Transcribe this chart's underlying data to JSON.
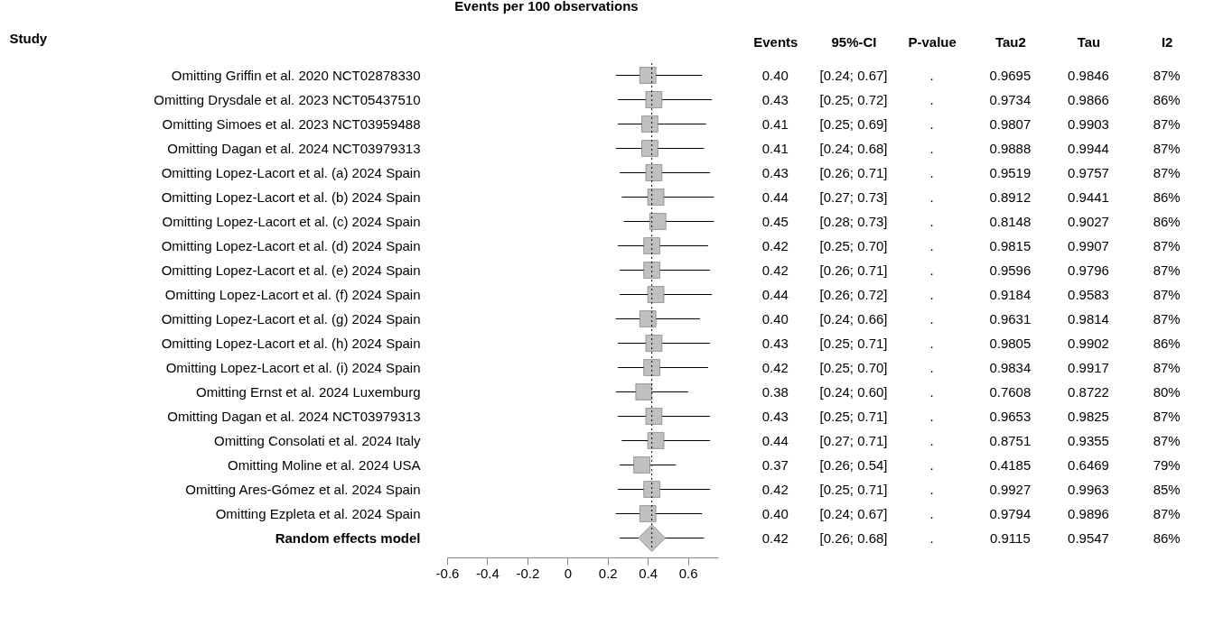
{
  "chart_data": [
    {
      "type": "scatter",
      "orientation": "horizontal",
      "xlabel": "Events per 100 observations",
      "ylabel": "Study",
      "categories": [
        "Omitting Griffin et al. 2020 NCT02878330",
        "Omitting Drysdale et al. 2023 NCT05437510",
        "Omitting Simoes et al. 2023 NCT03959488",
        "Omitting Dagan et al. 2024 NCT03979313",
        "Omitting Lopez-Lacort et al. (a) 2024 Spain",
        "Omitting Lopez-Lacort et al. (b) 2024 Spain",
        "Omitting Lopez-Lacort et al. (c) 2024 Spain",
        "Omitting Lopez-Lacort et al. (d) 2024 Spain",
        "Omitting Lopez-Lacort et al. (e) 2024 Spain",
        "Omitting Lopez-Lacort et al. (f) 2024 Spain",
        "Omitting Lopez-Lacort et al. (g) 2024 Spain",
        "Omitting Lopez-Lacort et al. (h) 2024 Spain",
        "Omitting Lopez-Lacort et al. (i) 2024 Spain",
        "Omitting Ernst et al. 2024 Luxemburg",
        "Omitting Dagan et al. 2024 NCT03979313",
        "Omitting Consolati et al. 2024 Italy",
        "Omitting Moline et al. 2024 USA",
        "Omitting Ares-Gómez et al. 2024 Spain",
        "Omitting Ezpleta et al. 2024 Spain",
        "Random effects model"
      ],
      "series": [
        {
          "color": "#c0c0c0",
          "marker": "square",
          "values": [
            0.4,
            0.43,
            0.41,
            0.41,
            0.43,
            0.44,
            0.45,
            0.42,
            0.42,
            0.44,
            0.4,
            0.43,
            0.42,
            0.38,
            0.43,
            0.44,
            0.37,
            0.42,
            0.4,
            null
          ],
          "errors": [
            [
              0.24,
              0.67
            ],
            [
              0.25,
              0.72
            ],
            [
              0.25,
              0.69
            ],
            [
              0.24,
              0.68
            ],
            [
              0.26,
              0.71
            ],
            [
              0.27,
              0.73
            ],
            [
              0.28,
              0.73
            ],
            [
              0.25,
              0.7
            ],
            [
              0.26,
              0.71
            ],
            [
              0.26,
              0.72
            ],
            [
              0.24,
              0.66
            ],
            [
              0.25,
              0.71
            ],
            [
              0.25,
              0.7
            ],
            [
              0.24,
              0.6
            ],
            [
              0.25,
              0.71
            ],
            [
              0.27,
              0.71
            ],
            [
              0.26,
              0.54
            ],
            [
              0.25,
              0.71
            ],
            [
              0.24,
              0.67
            ],
            null
          ]
        },
        {
          "color": "#c0c0c0",
          "marker": "diamond",
          "values": [
            null,
            null,
            null,
            null,
            null,
            null,
            null,
            null,
            null,
            null,
            null,
            null,
            null,
            null,
            null,
            null,
            null,
            null,
            null,
            0.42
          ],
          "errors": [
            null,
            null,
            null,
            null,
            null,
            null,
            null,
            null,
            null,
            null,
            null,
            null,
            null,
            null,
            null,
            null,
            null,
            null,
            null,
            [
              0.26,
              0.68
            ]
          ]
        }
      ],
      "ref_lines": [
        {
          "axis": "x",
          "value": 0.42,
          "line_style": "dotted"
        }
      ],
      "xlim": [
        -0.6,
        0.75
      ],
      "xticks": [
        -0.6,
        -0.4,
        -0.2,
        0,
        0.2,
        0.4,
        0.6
      ],
      "grid": false
    },
    {
      "type": "other",
      "categories": [
        "Events",
        "95%-CI",
        "P-value",
        "Tau2",
        "Tau",
        "I2"
      ],
      "cell_labels": [
        [
          "0.40",
          "[0.24; 0.67]",
          ".",
          "0.9695",
          "0.9846",
          "87%"
        ],
        [
          "0.43",
          "[0.25; 0.72]",
          ".",
          "0.9734",
          "0.9866",
          "86%"
        ],
        [
          "0.41",
          "[0.25; 0.69]",
          ".",
          "0.9807",
          "0.9903",
          "87%"
        ],
        [
          "0.41",
          "[0.24; 0.68]",
          ".",
          "0.9888",
          "0.9944",
          "87%"
        ],
        [
          "0.43",
          "[0.26; 0.71]",
          ".",
          "0.9519",
          "0.9757",
          "87%"
        ],
        [
          "0.44",
          "[0.27; 0.73]",
          ".",
          "0.8912",
          "0.9441",
          "86%"
        ],
        [
          "0.45",
          "[0.28; 0.73]",
          ".",
          "0.8148",
          "0.9027",
          "86%"
        ],
        [
          "0.42",
          "[0.25; 0.70]",
          ".",
          "0.9815",
          "0.9907",
          "87%"
        ],
        [
          "0.42",
          "[0.26; 0.71]",
          ".",
          "0.9596",
          "0.9796",
          "87%"
        ],
        [
          "0.44",
          "[0.26; 0.72]",
          ".",
          "0.9184",
          "0.9583",
          "87%"
        ],
        [
          "0.40",
          "[0.24; 0.66]",
          ".",
          "0.9631",
          "0.9814",
          "87%"
        ],
        [
          "0.43",
          "[0.25; 0.71]",
          ".",
          "0.9805",
          "0.9902",
          "86%"
        ],
        [
          "0.42",
          "[0.25; 0.70]",
          ".",
          "0.9834",
          "0.9917",
          "87%"
        ],
        [
          "0.38",
          "[0.24; 0.60]",
          ".",
          "0.7608",
          "0.8722",
          "80%"
        ],
        [
          "0.43",
          "[0.25; 0.71]",
          ".",
          "0.9653",
          "0.9825",
          "87%"
        ],
        [
          "0.44",
          "[0.27; 0.71]",
          ".",
          "0.8751",
          "0.9355",
          "87%"
        ],
        [
          "0.37",
          "[0.26; 0.54]",
          ".",
          "0.4185",
          "0.6469",
          "79%"
        ],
        [
          "0.42",
          "[0.25; 0.71]",
          ".",
          "0.9927",
          "0.9963",
          "85%"
        ],
        [
          "0.40",
          "[0.24; 0.67]",
          ".",
          "0.9794",
          "0.9896",
          "87%"
        ],
        [
          "0.42",
          "[0.26; 0.68]",
          ".",
          "0.9115",
          "0.9547",
          "86%"
        ]
      ]
    }
  ]
}
